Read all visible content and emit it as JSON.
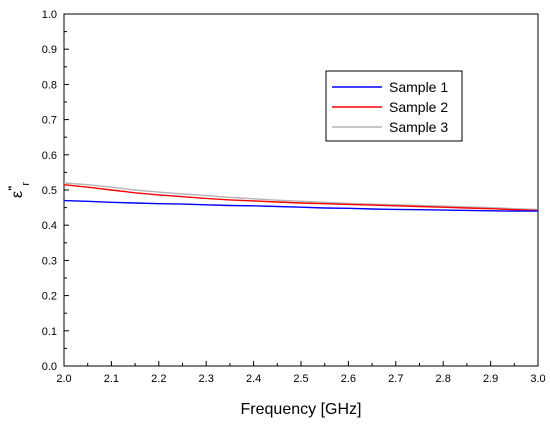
{
  "chart_data": {
    "type": "line",
    "title": "",
    "xlabel": "Frequency [GHz]",
    "ylabel": {
      "base": "ε",
      "sup": "\"",
      "sub": "r"
    },
    "xlim": [
      2.0,
      3.0
    ],
    "ylim": [
      0.0,
      1.0
    ],
    "x_ticks": [
      "2.0",
      "2.1",
      "2.2",
      "2.3",
      "2.4",
      "2.5",
      "2.6",
      "2.7",
      "2.8",
      "2.9",
      "3.0"
    ],
    "y_ticks": [
      "0.0",
      "0.1",
      "0.2",
      "0.3",
      "0.4",
      "0.5",
      "0.6",
      "0.7",
      "0.8",
      "0.9",
      "1.0"
    ],
    "grid": false,
    "legend_position": "top-right",
    "series": [
      {
        "name": "Sample 1",
        "color": "#0000ff",
        "x": [
          2.0,
          2.05,
          2.1,
          2.15,
          2.2,
          2.25,
          2.3,
          2.35,
          2.4,
          2.45,
          2.5,
          2.55,
          2.6,
          2.65,
          2.7,
          2.75,
          2.8,
          2.85,
          2.9,
          2.95,
          3.0
        ],
        "y": [
          0.47,
          0.468,
          0.465,
          0.463,
          0.461,
          0.46,
          0.458,
          0.456,
          0.455,
          0.453,
          0.451,
          0.449,
          0.448,
          0.446,
          0.445,
          0.444,
          0.443,
          0.442,
          0.441,
          0.44,
          0.44
        ]
      },
      {
        "name": "Sample 2",
        "color": "#ff0000",
        "x": [
          2.0,
          2.05,
          2.1,
          2.15,
          2.2,
          2.25,
          2.3,
          2.35,
          2.4,
          2.45,
          2.5,
          2.55,
          2.6,
          2.65,
          2.7,
          2.75,
          2.8,
          2.85,
          2.9,
          2.95,
          3.0
        ],
        "y": [
          0.515,
          0.508,
          0.5,
          0.492,
          0.486,
          0.481,
          0.476,
          0.472,
          0.469,
          0.466,
          0.463,
          0.461,
          0.459,
          0.457,
          0.455,
          0.453,
          0.451,
          0.449,
          0.447,
          0.444,
          0.442
        ]
      },
      {
        "name": "Sample 3",
        "color": "#b4b4b4",
        "x": [
          2.0,
          2.05,
          2.1,
          2.15,
          2.2,
          2.25,
          2.3,
          2.35,
          2.4,
          2.45,
          2.5,
          2.55,
          2.6,
          2.65,
          2.7,
          2.75,
          2.8,
          2.85,
          2.9,
          2.95,
          3.0
        ],
        "y": [
          0.52,
          0.515,
          0.508,
          0.5,
          0.494,
          0.489,
          0.484,
          0.479,
          0.475,
          0.471,
          0.468,
          0.465,
          0.462,
          0.46,
          0.458,
          0.456,
          0.454,
          0.452,
          0.45,
          0.447,
          0.445
        ]
      }
    ]
  }
}
